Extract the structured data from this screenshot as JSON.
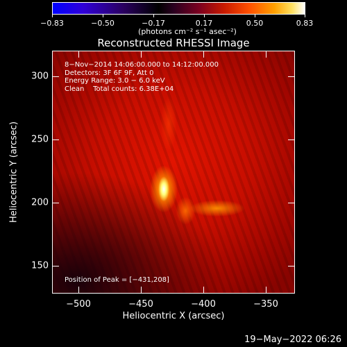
{
  "colorbar": {
    "labels": [
      "−0.83",
      "−0.50",
      "−0.17",
      "0.17",
      "0.50",
      "0.83"
    ],
    "units": "(photons cm⁻² s⁻¹ asec⁻²)"
  },
  "image": {
    "title": "Reconstructed RHESSI Image",
    "annotation": {
      "time_range": "8−Nov−2014 14:06:00.000 to 14:12:00.000",
      "detectors": "Detectors: 3F 6F 9F, Att 0",
      "energy_range": "Energy Range: 3.0 − 6.0 keV",
      "method_counts": "Clean    Total counts: 6.38E+04"
    },
    "peak_position": "Position of Peak = [−431,208]"
  },
  "axes": {
    "x_label": "Heliocentric X (arcsec)",
    "y_label": "Heliocentric Y (arcsec)",
    "x_ticks": [
      "−500",
      "−450",
      "−400",
      "−350"
    ],
    "y_ticks": [
      "300",
      "250",
      "200",
      "150"
    ]
  },
  "footer": {
    "timestamp": "19−May−2022 06:26"
  }
}
